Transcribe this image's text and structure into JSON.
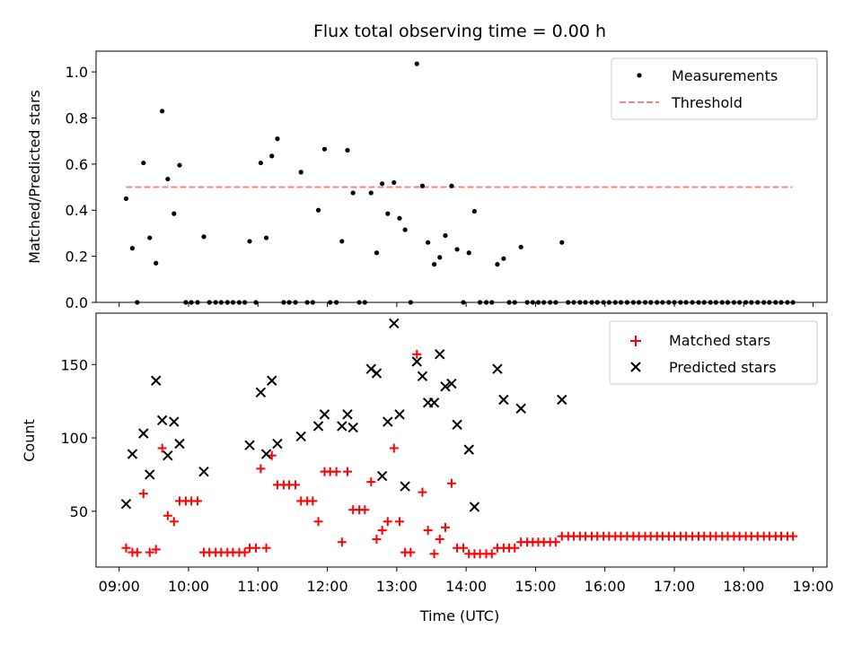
{
  "chart_data": [
    {
      "type": "scatter",
      "title": "Flux total observing time = 0.00 h",
      "xlabel": "",
      "ylabel": "Matched/Predicted stars",
      "x_unit": "hours UTC",
      "xlim": [
        8.667,
        19.2
      ],
      "ylim": [
        0,
        1.09
      ],
      "yticks": [
        0.0,
        0.2,
        0.4,
        0.6,
        0.8,
        1.0
      ],
      "ytick_labels": [
        "0.0",
        "0.2",
        "0.4",
        "0.6",
        "0.8",
        "1.0"
      ],
      "legend": [
        "Measurements",
        "Threshold"
      ],
      "legend_position": "top-right",
      "threshold": {
        "name": "Threshold",
        "value": 0.5,
        "x_start": 9.1,
        "x_end": 18.7,
        "color": "#ff8080"
      },
      "series": [
        {
          "name": "Measurements",
          "color": "#000000",
          "x": [
            9.1,
            9.19,
            9.26,
            9.35,
            9.44,
            9.53,
            9.62,
            9.7,
            9.79,
            9.87,
            9.96,
            10.04,
            10.13,
            10.22,
            10.3,
            10.39,
            10.47,
            10.56,
            10.64,
            10.73,
            10.81,
            10.88,
            10.97,
            11.04,
            11.12,
            11.2,
            11.28,
            11.37,
            11.45,
            11.54,
            11.62,
            11.71,
            11.79,
            11.87,
            11.96,
            12.04,
            12.13,
            12.21,
            12.29,
            12.37,
            12.46,
            12.54,
            12.63,
            12.71,
            12.79,
            12.87,
            12.96,
            13.04,
            13.12,
            13.2,
            13.29,
            13.37,
            13.45,
            13.54,
            13.62,
            13.7,
            13.79,
            13.87,
            13.96,
            14.04,
            14.12,
            14.2,
            14.29,
            14.37,
            14.45,
            14.54,
            14.62,
            14.7,
            14.79,
            14.88,
            14.96,
            15.04,
            15.12,
            15.21,
            15.29,
            15.38,
            15.47,
            15.55,
            15.64,
            15.72,
            15.81,
            15.89,
            15.98,
            16.06,
            16.15,
            16.23,
            16.32,
            16.41,
            16.49,
            16.58,
            16.66,
            16.75,
            16.83,
            16.92,
            17.0,
            17.09,
            17.17,
            17.26,
            17.35,
            17.43,
            17.52,
            17.6,
            17.69,
            17.77,
            17.86,
            17.94,
            18.03,
            18.11,
            18.2,
            18.29,
            18.37,
            18.46,
            18.54,
            18.63,
            18.71
          ],
          "y": [
            0.45,
            0.235,
            0.0,
            0.605,
            0.28,
            0.17,
            0.83,
            0.535,
            0.385,
            0.595,
            0.0,
            0.0,
            0.0,
            0.285,
            0.0,
            0.0,
            0.0,
            0.0,
            0.0,
            0.0,
            0.0,
            0.265,
            0.0,
            0.605,
            0.28,
            0.635,
            0.71,
            0.0,
            0.0,
            0.0,
            0.565,
            0.0,
            0.0,
            0.4,
            0.665,
            0.0,
            0.0,
            0.265,
            0.66,
            0.475,
            0.0,
            0.0,
            0.475,
            0.215,
            0.515,
            0.385,
            0.52,
            0.365,
            0.315,
            0.0,
            1.035,
            0.505,
            0.26,
            0.165,
            0.195,
            0.29,
            0.505,
            0.23,
            0.0,
            0.215,
            0.395,
            0.0,
            0.0,
            0.0,
            0.165,
            0.19,
            0.0,
            0.0,
            0.24,
            0.0,
            0.0,
            0.0,
            0.0,
            0.0,
            0.0,
            0.26,
            0.0,
            0.0,
            0.0,
            0.0,
            0.0,
            0.0,
            0.0,
            0.0,
            0.0,
            0.0,
            0.0,
            0.0,
            0.0,
            0.0,
            0.0,
            0.0,
            0.0,
            0.0,
            0.0,
            0.0,
            0.0,
            0.0,
            0.0,
            0.0,
            0.0,
            0.0,
            0.0,
            0.0,
            0.0,
            0.0,
            0.0,
            0.0,
            0.0,
            0.0,
            0.0,
            0.0,
            0.0,
            0.0,
            0.0
          ]
        }
      ]
    },
    {
      "type": "scatter",
      "title": "",
      "xlabel": "Time (UTC)",
      "ylabel": "Count",
      "x_unit": "hours UTC",
      "xlim": [
        8.667,
        19.2
      ],
      "ylim": [
        12,
        185
      ],
      "yticks": [
        50,
        100,
        150
      ],
      "ytick_labels": [
        "50",
        "100",
        "150"
      ],
      "xticks": [
        9,
        10,
        11,
        12,
        13,
        14,
        15,
        16,
        17,
        18,
        19
      ],
      "xtick_labels": [
        "09:00",
        "10:00",
        "11:00",
        "12:00",
        "13:00",
        "14:00",
        "15:00",
        "16:00",
        "17:00",
        "18:00",
        "19:00"
      ],
      "legend": [
        "Matched stars",
        "Predicted stars"
      ],
      "legend_position": "top-right",
      "series": [
        {
          "name": "Matched stars",
          "marker": "plus",
          "color": "#ff0000",
          "x": [
            9.1,
            9.19,
            9.26,
            9.35,
            9.44,
            9.53,
            9.62,
            9.7,
            9.79,
            9.87,
            9.96,
            10.04,
            10.13,
            10.22,
            10.3,
            10.39,
            10.47,
            10.56,
            10.64,
            10.73,
            10.81,
            10.88,
            10.97,
            11.04,
            11.12,
            11.2,
            11.28,
            11.37,
            11.45,
            11.54,
            11.62,
            11.71,
            11.79,
            11.87,
            11.96,
            12.04,
            12.13,
            12.21,
            12.29,
            12.37,
            12.46,
            12.54,
            12.63,
            12.71,
            12.79,
            12.87,
            12.96,
            13.04,
            13.12,
            13.2,
            13.29,
            13.37,
            13.45,
            13.54,
            13.62,
            13.7,
            13.79,
            13.87,
            13.96,
            14.04,
            14.12,
            14.2,
            14.29,
            14.37,
            14.45,
            14.54,
            14.62,
            14.7,
            14.79,
            14.88,
            14.96,
            15.04,
            15.12,
            15.21,
            15.29,
            15.38,
            15.47,
            15.55,
            15.64,
            15.72,
            15.81,
            15.89,
            15.98,
            16.06,
            16.15,
            16.23,
            16.32,
            16.41,
            16.49,
            16.58,
            16.66,
            16.75,
            16.83,
            16.92,
            17.0,
            17.09,
            17.17,
            17.26,
            17.35,
            17.43,
            17.52,
            17.6,
            17.69,
            17.77,
            17.86,
            17.94,
            18.03,
            18.11,
            18.2,
            18.29,
            18.37,
            18.46,
            18.54,
            18.63,
            18.71
          ],
          "y": [
            25,
            22,
            22,
            62,
            22,
            24,
            93,
            47,
            43,
            57,
            57,
            57,
            57,
            22,
            22,
            22,
            22,
            22,
            22,
            22,
            22,
            25,
            25,
            79,
            25,
            88,
            68,
            68,
            68,
            68,
            57,
            57,
            57,
            43,
            77,
            77,
            77,
            29,
            77,
            51,
            51,
            51,
            70,
            31,
            37,
            43,
            93,
            43,
            22,
            22,
            157,
            63,
            37,
            21,
            31,
            39,
            69,
            25,
            25,
            21,
            21,
            21,
            21,
            21,
            25,
            25,
            25,
            25,
            29,
            29,
            29,
            29,
            29,
            29,
            29,
            33,
            33,
            33,
            33,
            33,
            33,
            33,
            33,
            33,
            33,
            33,
            33,
            33,
            33,
            33,
            33,
            33,
            33,
            33,
            33,
            33,
            33,
            33,
            33,
            33,
            33,
            33,
            33,
            33,
            33,
            33,
            33,
            33,
            33,
            33,
            33,
            33,
            33,
            33,
            33
          ]
        },
        {
          "name": "Predicted stars",
          "marker": "x",
          "color": "#000000",
          "x": [
            9.1,
            9.19,
            9.35,
            9.44,
            9.53,
            9.62,
            9.7,
            9.79,
            9.87,
            10.22,
            10.88,
            11.04,
            11.12,
            11.2,
            11.28,
            11.62,
            11.87,
            11.96,
            12.21,
            12.29,
            12.37,
            12.63,
            12.71,
            12.79,
            12.87,
            12.96,
            13.04,
            13.12,
            13.29,
            13.37,
            13.45,
            13.54,
            13.62,
            13.7,
            13.79,
            13.87,
            14.04,
            14.12,
            14.45,
            14.54,
            14.79,
            15.38
          ],
          "y": [
            55,
            89,
            103,
            75,
            139,
            112,
            88,
            111,
            96,
            77,
            95,
            131,
            89,
            139,
            96,
            101,
            108,
            116,
            108,
            116,
            107,
            147,
            144,
            74,
            111,
            178,
            116,
            67,
            152,
            142,
            124,
            124,
            157,
            135,
            137,
            109,
            92,
            53,
            147,
            126,
            120,
            126
          ]
        }
      ]
    }
  ]
}
